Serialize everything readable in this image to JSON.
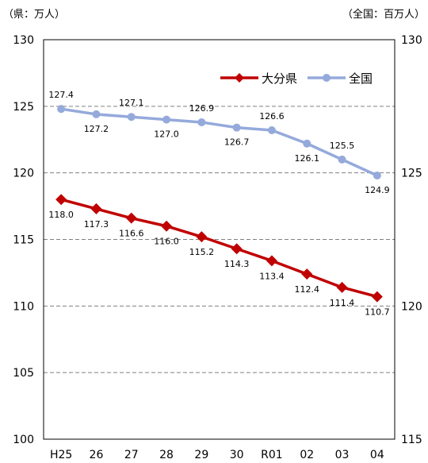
{
  "chart_data": {
    "type": "line",
    "categories": [
      "H25",
      "26",
      "27",
      "28",
      "29",
      "30",
      "R01",
      "02",
      "03",
      "04"
    ],
    "left_axis": {
      "unit_label": "（県：万人）",
      "ylim": [
        100,
        130
      ],
      "ticks": [
        "100",
        "105",
        "110",
        "115",
        "120",
        "125",
        "130"
      ]
    },
    "right_axis": {
      "unit_label": "（全国：百万人）",
      "ylim": [
        115,
        130
      ],
      "ticks": [
        "115",
        "120",
        "125",
        "130"
      ]
    },
    "grid": "dashed horizontal",
    "legend_position": "top-right",
    "series": [
      {
        "name": "大分県",
        "axis": "left",
        "color": "#c00000",
        "marker": "diamond",
        "values": [
          118.0,
          117.3,
          116.6,
          116.0,
          115.2,
          114.3,
          113.4,
          112.4,
          111.4,
          110.7
        ],
        "labels": [
          "118.0",
          "117.3",
          "116.6",
          "116.0",
          "115.2",
          "114.3",
          "113.4",
          "112.4",
          "111.4",
          "110.7"
        ]
      },
      {
        "name": "全国",
        "axis": "right",
        "color": "#95aadb",
        "marker": "circle",
        "values": [
          127.4,
          127.2,
          127.1,
          127.0,
          126.9,
          126.7,
          126.6,
          126.1,
          125.5,
          124.9
        ],
        "labels": [
          "127.4",
          "127.2",
          "127.1",
          "127.0",
          "126.9",
          "126.7",
          "126.6",
          "126.1",
          "125.5",
          "124.9"
        ]
      }
    ]
  }
}
